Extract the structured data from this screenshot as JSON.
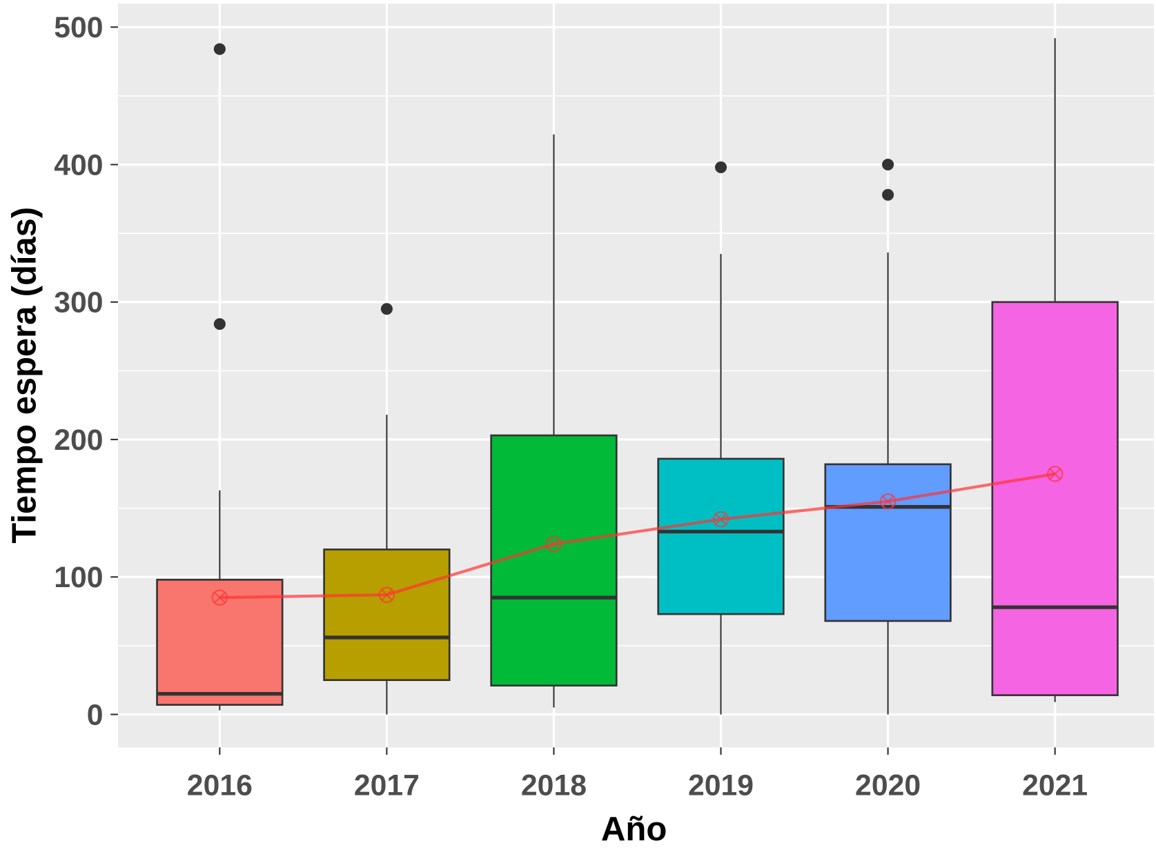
{
  "chart_data": {
    "type": "boxplot",
    "title": "",
    "xlabel": "Año",
    "ylabel": "Tiempo espera (días)",
    "ylim": [
      -25,
      518
    ],
    "yticks": [
      0,
      100,
      200,
      300,
      400,
      500
    ],
    "ytick_labels": [
      "0",
      "100",
      "200",
      "300",
      "400",
      "500"
    ],
    "grid": true,
    "categories": [
      "2016",
      "2017",
      "2018",
      "2019",
      "2020",
      "2021"
    ],
    "colors": [
      "#F8766D",
      "#B79F00",
      "#00BA38",
      "#00BFC4",
      "#619CFF",
      "#F564E3"
    ],
    "boxes": [
      {
        "year": "2016",
        "whisker_low": 3,
        "q1": 7,
        "median": 15,
        "q3": 98,
        "whisker_high": 163,
        "outliers": [
          284,
          484
        ],
        "mean": 85
      },
      {
        "year": "2017",
        "whisker_low": 0,
        "q1": 25,
        "median": 56,
        "q3": 120,
        "whisker_high": 218,
        "outliers": [
          295
        ],
        "mean": 87
      },
      {
        "year": "2018",
        "whisker_low": 5,
        "q1": 21,
        "median": 85,
        "q3": 203,
        "whisker_high": 422,
        "outliers": [],
        "mean": 124
      },
      {
        "year": "2019",
        "whisker_low": 0,
        "q1": 73,
        "median": 133,
        "q3": 186,
        "whisker_high": 335,
        "outliers": [
          398
        ],
        "mean": 142
      },
      {
        "year": "2020",
        "whisker_low": 0,
        "q1": 68,
        "median": 151,
        "q3": 182,
        "whisker_high": 336,
        "outliers": [
          378,
          400
        ],
        "mean": 155
      },
      {
        "year": "2021",
        "whisker_low": 9,
        "q1": 14,
        "median": 78,
        "q3": 300,
        "whisker_high": 492,
        "outliers": [],
        "mean": 175
      }
    ],
    "mean_line_color": "#FF3333"
  }
}
